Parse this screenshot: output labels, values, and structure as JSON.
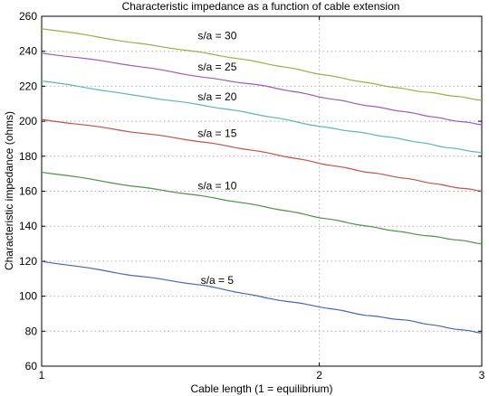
{
  "chart_data": {
    "type": "line",
    "title": "Characteristic impedance as a function of cable extension",
    "xlabel": "Cable length (1 = equilibrium)",
    "ylabel": "Characteristic impedance (ohms)",
    "xlim": [
      1,
      3
    ],
    "ylim": [
      60,
      260
    ],
    "x_scale": "log",
    "xticks": [
      1,
      2,
      3
    ],
    "xtick_labels": [
      "1",
      "2",
      "3"
    ],
    "yticks": [
      60,
      80,
      100,
      120,
      140,
      160,
      180,
      200,
      220,
      240,
      260
    ],
    "ytick_labels": [
      "60",
      "80",
      "100",
      "120",
      "140",
      "160",
      "180",
      "200",
      "220",
      "240",
      "260"
    ],
    "grid": true,
    "x": [
      1.0,
      1.25,
      1.5,
      1.75,
      2.0,
      2.25,
      2.5,
      2.75,
      3.0
    ],
    "series": [
      {
        "name": "s/a = 5",
        "color": "#4a66b0",
        "values": [
          120,
          112,
          106,
          99,
          94,
          89,
          86,
          82,
          79
        ]
      },
      {
        "name": "s/a = 10",
        "color": "#4f8f46",
        "values": [
          171,
          163,
          157,
          151,
          145,
          140,
          136,
          133,
          130
        ]
      },
      {
        "name": "s/a = 15",
        "color": "#c0504d",
        "values": [
          201,
          194,
          188,
          182,
          176,
          171,
          167,
          163,
          160
        ]
      },
      {
        "name": "s/a = 20",
        "color": "#5fb5b5",
        "values": [
          223,
          215,
          209,
          203,
          197,
          193,
          189,
          185,
          182
        ]
      },
      {
        "name": "s/a = 25",
        "color": "#a05ab8",
        "values": [
          239,
          232,
          225,
          220,
          214,
          209,
          205,
          201,
          198
        ]
      },
      {
        "name": "s/a = 30",
        "color": "#9aaf4a",
        "values": [
          253,
          245,
          239,
          233,
          227,
          222,
          218,
          215,
          212
        ]
      }
    ],
    "annotations": [
      {
        "text": "s/a = 30",
        "x": 1.55,
        "y": 249
      },
      {
        "text": "s/a = 25",
        "x": 1.55,
        "y": 231
      },
      {
        "text": "s/a = 20",
        "x": 1.55,
        "y": 214
      },
      {
        "text": "s/a = 15",
        "x": 1.55,
        "y": 193
      },
      {
        "text": "s/a = 10",
        "x": 1.55,
        "y": 163
      },
      {
        "text": "s/a = 5",
        "x": 1.55,
        "y": 109
      }
    ]
  }
}
